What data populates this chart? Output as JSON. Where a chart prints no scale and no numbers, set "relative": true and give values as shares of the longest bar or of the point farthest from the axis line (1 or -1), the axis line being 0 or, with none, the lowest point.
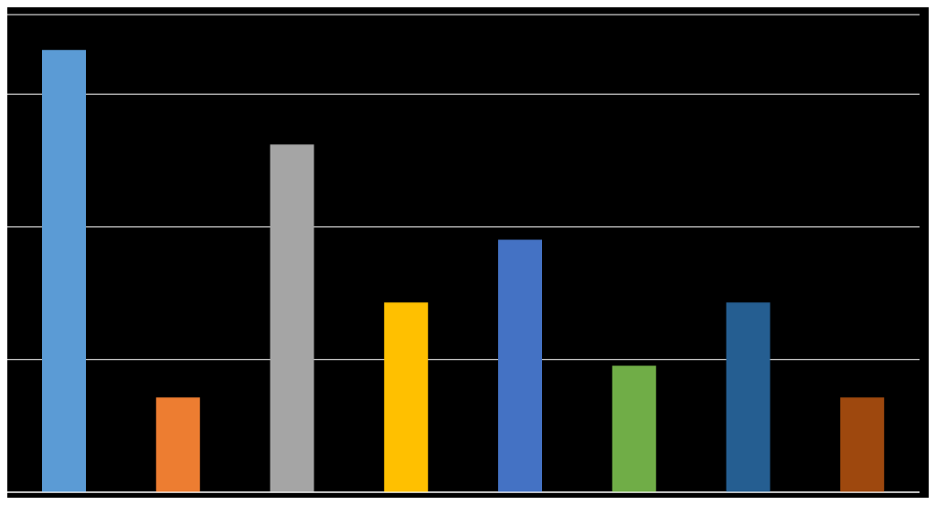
{
  "chart_data": {
    "type": "bar",
    "relative": true,
    "categories": [
      null,
      null,
      null,
      null,
      null,
      null,
      null,
      null
    ],
    "values": [
      1,
      0.214,
      0.786,
      0.429,
      0.571,
      0.286,
      0.429,
      0.214
    ],
    "colors": [
      "#5b9bd5",
      "#ed7d31",
      "#a5a5a5",
      "#ffc000",
      "#4472c4",
      "#70ad47",
      "#255e91",
      "#9e480e"
    ],
    "grid": "y"
  }
}
